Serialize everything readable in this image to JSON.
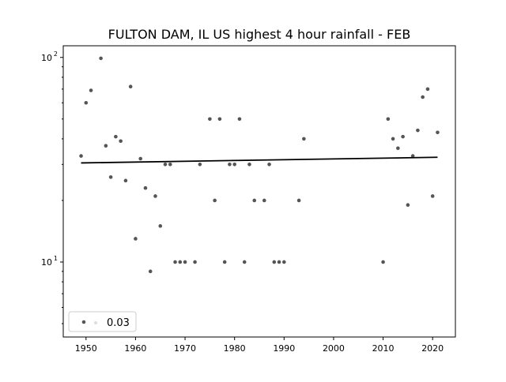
{
  "chart_data": {
    "type": "scatter",
    "title": "FULTON DAM, IL US highest 4 hour rainfall - FEB",
    "xlabel": "",
    "ylabel": "",
    "yscale": "log",
    "xlim": [
      1945.4,
      2024.6
    ],
    "ylim": [
      4.3,
      114
    ],
    "xticks": [
      1950,
      1960,
      1970,
      1980,
      1990,
      2000,
      2010,
      2020
    ],
    "yticks": [
      {
        "base": "10",
        "exp": "1",
        "value": 10
      },
      {
        "base": "10",
        "exp": "2",
        "value": 100
      }
    ],
    "grid": false,
    "legend": {
      "placement": "lower-left",
      "label": "0.03"
    },
    "points": {
      "x": [
        1949,
        1950,
        1951,
        1953,
        1954,
        1955,
        1956,
        1957,
        1958,
        1959,
        1960,
        1961,
        1962,
        1963,
        1964,
        1965,
        1966,
        1967,
        1968,
        1969,
        1970,
        1972,
        1973,
        1975,
        1976,
        1977,
        1978,
        1979,
        1980,
        1981,
        1982,
        1983,
        1984,
        1986,
        1987,
        1988,
        1989,
        1990,
        1993,
        1994,
        2010,
        2011,
        2012,
        2013,
        2014,
        2015,
        2016,
        2017,
        2018,
        2019,
        2020,
        2021
      ],
      "y": [
        33,
        60,
        69,
        99,
        37,
        26,
        41,
        39,
        25,
        72,
        13,
        32,
        23,
        9,
        21,
        15,
        30,
        30,
        10,
        10,
        10,
        10,
        30,
        50,
        20,
        50,
        10,
        30,
        30,
        50,
        10,
        30,
        20,
        20,
        30,
        10,
        10,
        10,
        20,
        40,
        10,
        50,
        40,
        36,
        41,
        19,
        33,
        44,
        64,
        70,
        21,
        43
      ]
    },
    "trend": {
      "x": [
        1949,
        2021
      ],
      "y": [
        30.5,
        32.5
      ]
    },
    "colors": {
      "points": "#555555",
      "trend": "#000000"
    }
  }
}
